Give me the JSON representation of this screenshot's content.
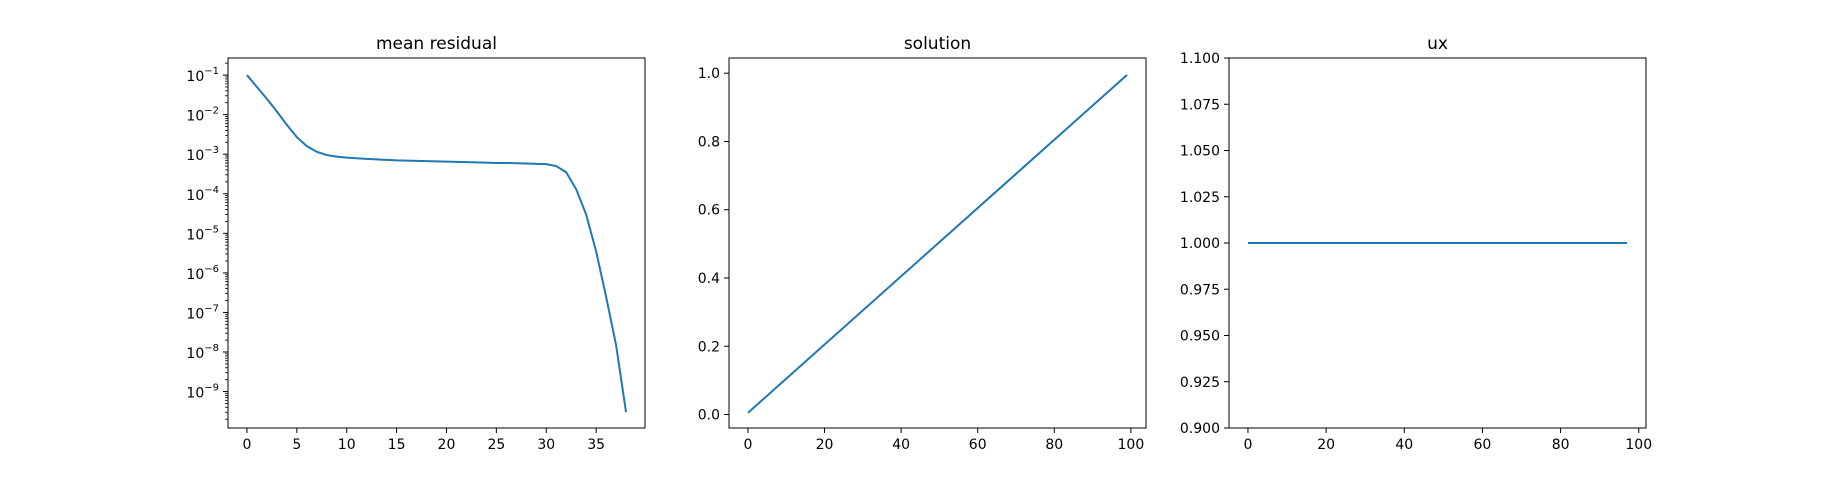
{
  "colors": {
    "line": "#1f77b4",
    "axes": "#000000",
    "background": "#ffffff"
  },
  "chart_data": [
    {
      "type": "line",
      "title": "mean residual",
      "xlabel": "",
      "ylabel": "",
      "yscale": "log",
      "xlim": [
        -1.9,
        39.9
      ],
      "ylim": [
        1.2e-10,
        0.27
      ],
      "grid": false,
      "xticks": [
        0,
        5,
        10,
        15,
        20,
        25,
        30,
        35
      ],
      "xtick_labels": [
        "0",
        "5",
        "10",
        "15",
        "20",
        "25",
        "30",
        "35"
      ],
      "yticks": [
        1e-09,
        1e-08,
        1e-07,
        1e-06,
        1e-05,
        0.0001,
        0.001,
        0.01,
        0.1
      ],
      "ytick_labels": [
        {
          "base": "10",
          "exp": "−9"
        },
        {
          "base": "10",
          "exp": "−8"
        },
        {
          "base": "10",
          "exp": "−7"
        },
        {
          "base": "10",
          "exp": "−6"
        },
        {
          "base": "10",
          "exp": "−5"
        },
        {
          "base": "10",
          "exp": "−4"
        },
        {
          "base": "10",
          "exp": "−3"
        },
        {
          "base": "10",
          "exp": "−2"
        },
        {
          "base": "10",
          "exp": "−1"
        }
      ],
      "series": [
        {
          "x": [
            0,
            1,
            2,
            3,
            4,
            5,
            6,
            7,
            8,
            9,
            10,
            11,
            12,
            13,
            14,
            15,
            16,
            17,
            18,
            19,
            20,
            21,
            22,
            23,
            24,
            25,
            26,
            27,
            28,
            29,
            30,
            31,
            32,
            33,
            34,
            35,
            36,
            37,
            38
          ],
          "y": [
            0.1,
            0.05,
            0.025,
            0.012,
            0.0055,
            0.0027,
            0.0016,
            0.00115,
            0.00095,
            0.00087,
            0.00082,
            0.00079,
            0.00076,
            0.00074,
            0.00072,
            0.0007,
            0.00069,
            0.00068,
            0.00067,
            0.00066,
            0.00065,
            0.00064,
            0.00063,
            0.00062,
            0.00061,
            0.0006,
            0.0006,
            0.00059,
            0.00058,
            0.00057,
            0.00056,
            0.0005,
            0.00035,
            0.00013,
            3e-05,
            3.5e-06,
            2.5e-07,
            1.5e-08,
            3e-10
          ]
        }
      ]
    },
    {
      "type": "line",
      "title": "solution",
      "xlabel": "",
      "ylabel": "",
      "xlim": [
        -4.95,
        103.95
      ],
      "ylim": [
        -0.0395,
        1.0445
      ],
      "grid": false,
      "xticks": [
        0,
        20,
        40,
        60,
        80,
        100
      ],
      "xtick_labels": [
        "0",
        "20",
        "40",
        "60",
        "80",
        "100"
      ],
      "yticks": [
        0.0,
        0.2,
        0.4,
        0.6,
        0.8,
        1.0
      ],
      "ytick_labels": [
        "0.0",
        "0.2",
        "0.4",
        "0.6",
        "0.8",
        "1.0"
      ],
      "series": [
        {
          "x": [
            0,
            99
          ],
          "y": [
            0.005,
            0.995
          ]
        }
      ]
    },
    {
      "type": "line",
      "title": "ux",
      "xlabel": "",
      "ylabel": "",
      "xlim": [
        -4.85,
        101.85
      ],
      "ylim": [
        0.9,
        1.1
      ],
      "grid": false,
      "xticks": [
        0,
        20,
        40,
        60,
        80,
        100
      ],
      "xtick_labels": [
        "0",
        "20",
        "40",
        "60",
        "80",
        "100"
      ],
      "yticks": [
        0.9,
        0.925,
        0.95,
        0.975,
        1.0,
        1.025,
        1.05,
        1.075,
        1.1
      ],
      "ytick_labels": [
        "0.900",
        "0.925",
        "0.950",
        "0.975",
        "1.000",
        "1.025",
        "1.050",
        "1.075",
        "1.100"
      ],
      "series": [
        {
          "x": [
            0,
            97
          ],
          "y": [
            1.0,
            1.0
          ]
        }
      ]
    }
  ]
}
